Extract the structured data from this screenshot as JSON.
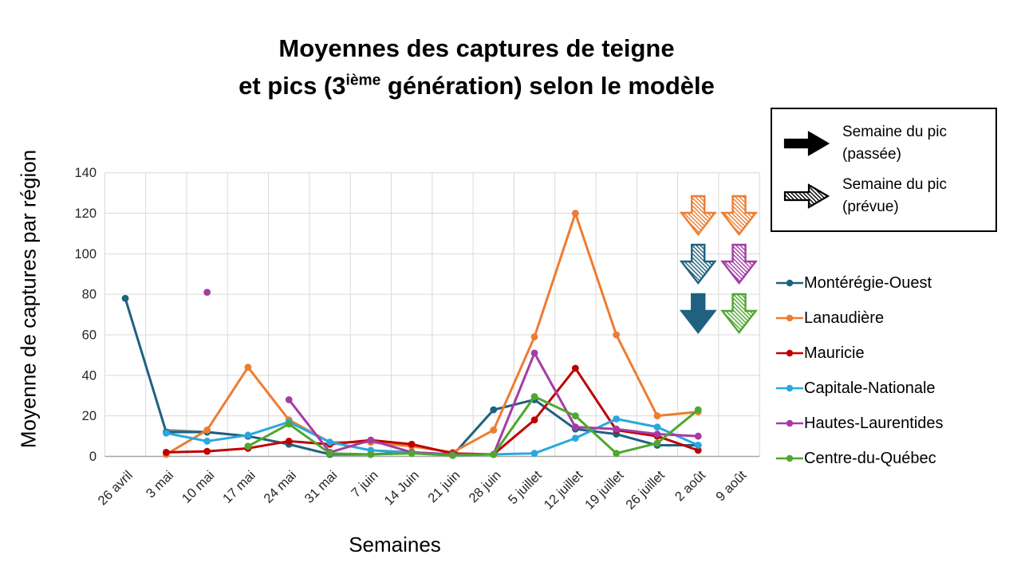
{
  "title": {
    "line1": "Moyennes des captures de teigne",
    "line2_pre": "et pics (3",
    "line2_sup": "ième",
    "line2_post": " génération) selon le modèle"
  },
  "axes": {
    "y_title": "Moyenne de captures par région",
    "x_title": "Semaines",
    "y_ticks": [
      0,
      20,
      40,
      60,
      80,
      100,
      120,
      140
    ]
  },
  "arrow_legend": {
    "items": [
      {
        "style": "solid",
        "color": "#000000",
        "label_line1": "Semaine du pic",
        "label_line2": "(passée)"
      },
      {
        "style": "hatched",
        "color": "#000000",
        "label_line1": "Semaine du pic",
        "label_line2": "(prévue)"
      }
    ]
  },
  "chart_data": {
    "type": "line",
    "title": "Moyennes des captures de teigne et pics (3ième génération) selon le modèle",
    "xlabel": "Semaines",
    "ylabel": "Moyenne de captures par région",
    "ylim": [
      0,
      140
    ],
    "grid": "on",
    "legend_position": "right",
    "categories": [
      "26 avril",
      "3 mai",
      "10 mai",
      "17 mai",
      "24 mai",
      "31 mai",
      "7 juin",
      "14 Juin",
      "21 juin",
      "28 juin",
      "5 juillet",
      "12 juillet",
      "19 juillet",
      "26 juillet",
      "2 août",
      "9 août"
    ],
    "series": [
      {
        "name": "",
        "color": "#8A8A8A",
        "legend": false,
        "markers": false,
        "values": [
          null,
          13,
          12,
          10,
          null,
          null,
          null,
          null,
          null,
          null,
          null,
          null,
          null,
          null,
          null,
          null
        ]
      },
      {
        "name": "Montérégie-Ouest",
        "color": "#1F617F",
        "values": [
          78,
          12,
          12,
          10,
          6,
          1,
          1,
          2,
          0.5,
          23,
          28,
          13.5,
          11,
          5.5,
          5.5,
          null
        ]
      },
      {
        "name": "Lanaudière",
        "color": "#ED7D31",
        "values": [
          null,
          1,
          13,
          44,
          18,
          7,
          7,
          5,
          2,
          13,
          59,
          120,
          60,
          20,
          22,
          null
        ]
      },
      {
        "name": "Mauricie",
        "color": "#C00000",
        "values": [
          null,
          2,
          2.5,
          4,
          7.5,
          6,
          8,
          6,
          1.5,
          1,
          18,
          43.5,
          13,
          10,
          3,
          null
        ]
      },
      {
        "name": "Capitale-Nationale",
        "color": "#29A8DF",
        "values": [
          null,
          11.5,
          7.5,
          10.5,
          17,
          7,
          3,
          2,
          1,
          1,
          1.5,
          9,
          18.5,
          14.5,
          5.5,
          null
        ]
      },
      {
        "name": "Hautes-Laurentides",
        "color": "#A53CA5",
        "values": [
          null,
          null,
          81,
          null,
          28,
          2,
          8,
          2,
          1,
          1,
          51,
          14.5,
          13.5,
          11,
          10,
          null
        ]
      },
      {
        "name": "Centre-du-Québec",
        "color": "#4EA72E",
        "values": [
          null,
          null,
          null,
          5,
          16,
          1.5,
          1,
          1.5,
          0.5,
          1,
          29.5,
          20,
          1.5,
          6.5,
          23,
          null
        ]
      }
    ],
    "peak_arrows": [
      {
        "category": "2 août",
        "series": "Lanaudière",
        "style": "hatched",
        "row": 0
      },
      {
        "category": "9 août",
        "series": "Lanaudière",
        "style": "hatched",
        "row": 0
      },
      {
        "category": "2 août",
        "series": "Montérégie-Ouest",
        "style": "hatched",
        "row": 1
      },
      {
        "category": "9 août",
        "series": "Hautes-Laurentides",
        "style": "hatched",
        "row": 1
      },
      {
        "category": "2 août",
        "series": "Montérégie-Ouest",
        "style": "solid",
        "row": 2
      },
      {
        "category": "9 août",
        "series": "Centre-du-Québec",
        "style": "hatched",
        "row": 2
      }
    ]
  }
}
